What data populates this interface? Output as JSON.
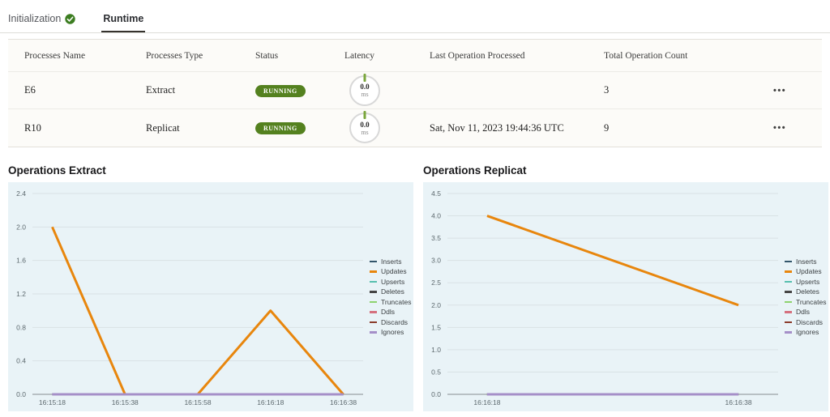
{
  "tabs": [
    {
      "label": "Initialization",
      "status_icon": "check-circle",
      "active": false
    },
    {
      "label": "Runtime",
      "active": true
    }
  ],
  "icons": {
    "overflow_menu": "•••"
  },
  "colors": {
    "status_running": "#54811f",
    "check_green": "#3c7d21",
    "chart_bg": "#e9f3f7",
    "axis_text": "#5c686d",
    "gridline": "#d9e2e5",
    "axis_line": "#878e92"
  },
  "table": {
    "columns": [
      "Processes Name",
      "Processes Type",
      "Status",
      "Latency",
      "Last Operation Processed",
      "Total Operation Count"
    ],
    "rows": [
      {
        "name": "E6",
        "type": "Extract",
        "status": "RUNNING",
        "latency_value": "0.0",
        "latency_unit": "ms",
        "last_operation": "",
        "total_count": "3"
      },
      {
        "name": "R10",
        "type": "Replicat",
        "status": "RUNNING",
        "latency_value": "0.0",
        "latency_unit": "ms",
        "last_operation": "Sat, Nov 11, 2023 19:44:36 UTC",
        "total_count": "9"
      }
    ]
  },
  "chart_data": [
    {
      "type": "line",
      "title": "Operations Extract",
      "x": [
        "16:15:18",
        "16:15:38",
        "16:15:58",
        "16:16:18",
        "16:16:38"
      ],
      "ylim": [
        0,
        2.4
      ],
      "ytick": 0.4,
      "grid": true,
      "legend_position": "right",
      "series": [
        {
          "name": "Inserts",
          "color": "#33566b",
          "values": [
            0,
            0,
            0,
            0,
            0
          ]
        },
        {
          "name": "Updates",
          "color": "#e8860d",
          "values": [
            2,
            0,
            0,
            1,
            0
          ]
        },
        {
          "name": "Upserts",
          "color": "#56bfae",
          "values": [
            0,
            0,
            0,
            0,
            0
          ]
        },
        {
          "name": "Deletes",
          "color": "#454545",
          "values": [
            0,
            0,
            0,
            0,
            0
          ]
        },
        {
          "name": "Truncates",
          "color": "#8ed36e",
          "values": [
            0,
            0,
            0,
            0,
            0
          ]
        },
        {
          "name": "Ddls",
          "color": "#d5707e",
          "values": [
            0,
            0,
            0,
            0,
            0
          ]
        },
        {
          "name": "Discards",
          "color": "#8a3b2a",
          "values": [
            0,
            0,
            0,
            0,
            0
          ]
        },
        {
          "name": "Ignores",
          "color": "#a58fc8",
          "values": [
            0,
            0,
            0,
            0,
            0
          ]
        }
      ]
    },
    {
      "type": "line",
      "title": "Operations Replicat",
      "x": [
        "16:16:18",
        "16:16:38"
      ],
      "ylim": [
        0,
        4.5
      ],
      "ytick": 0.5,
      "grid": true,
      "legend_position": "right",
      "series": [
        {
          "name": "Inserts",
          "color": "#33566b",
          "values": [
            0,
            0
          ]
        },
        {
          "name": "Updates",
          "color": "#e8860d",
          "values": [
            4,
            2
          ]
        },
        {
          "name": "Upserts",
          "color": "#56bfae",
          "values": [
            0,
            0
          ]
        },
        {
          "name": "Deletes",
          "color": "#454545",
          "values": [
            0,
            0
          ]
        },
        {
          "name": "Truncates",
          "color": "#8ed36e",
          "values": [
            0,
            0
          ]
        },
        {
          "name": "Ddls",
          "color": "#d5707e",
          "values": [
            0,
            0
          ]
        },
        {
          "name": "Discards",
          "color": "#8a3b2a",
          "values": [
            0,
            0
          ]
        },
        {
          "name": "Ignores",
          "color": "#a58fc8",
          "values": [
            0,
            0
          ]
        }
      ]
    }
  ]
}
